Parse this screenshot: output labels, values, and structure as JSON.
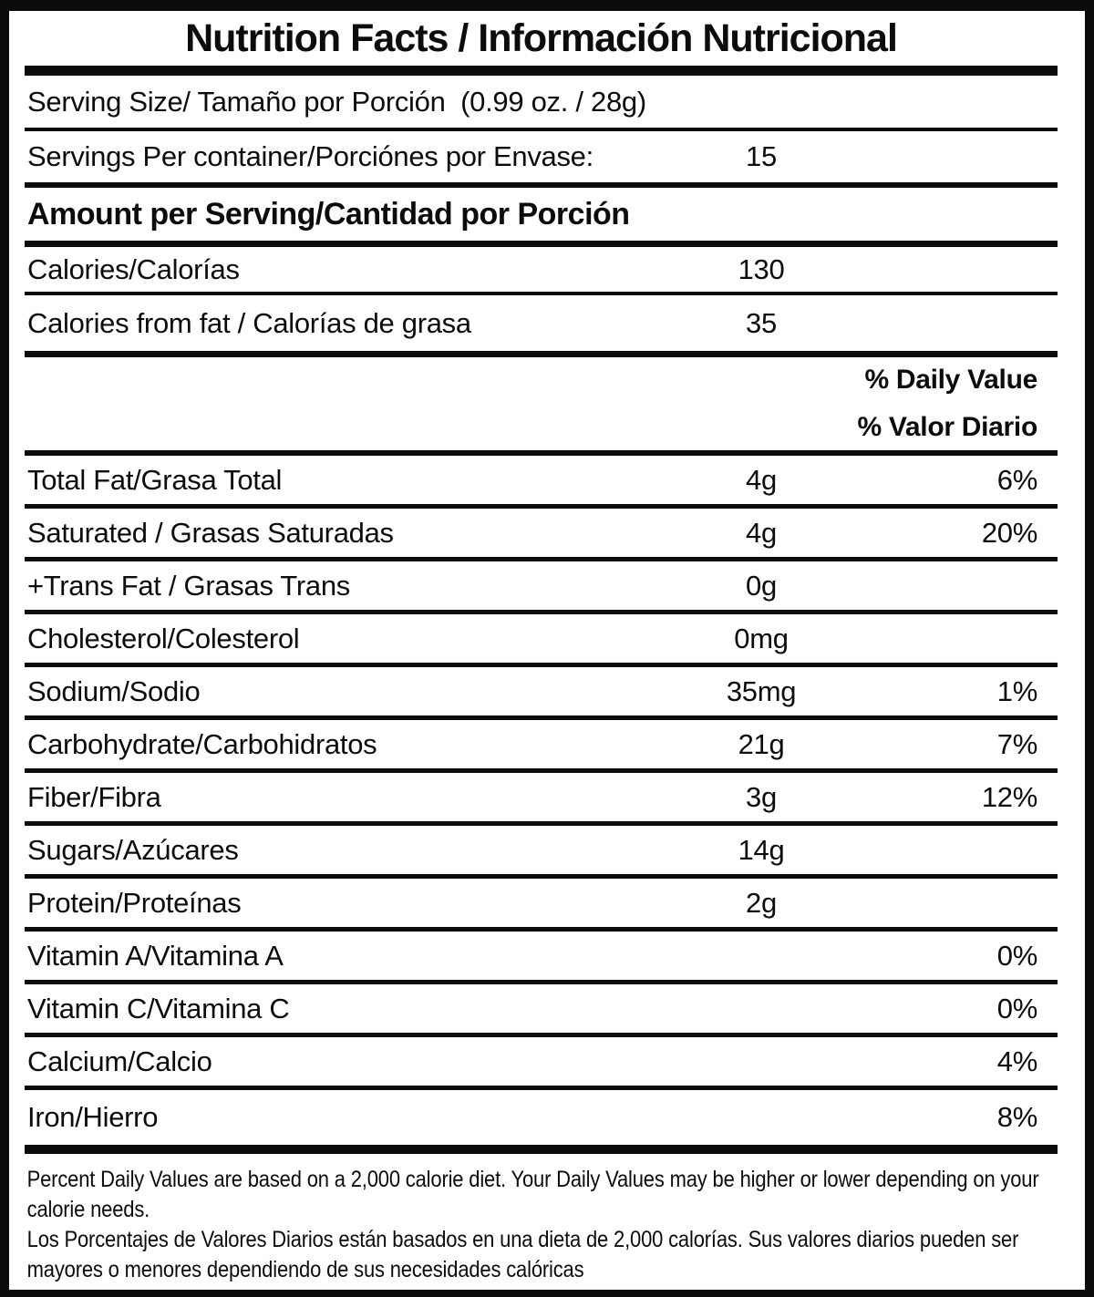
{
  "title": "Nutrition Facts / Información Nutricional",
  "serving": {
    "size_label": "Serving Size/ Tamaño por Porción  (0.99 oz. / 28g)",
    "per_container_label": "Servings Per container/Porciónes por Envase:",
    "per_container_value": "15"
  },
  "amount_header": "Amount per Serving/Cantidad por Porción",
  "calories": {
    "label": "Calories/Calorías",
    "value": "130"
  },
  "calories_from_fat": {
    "label": "Calories from fat / Calorías de grasa",
    "value": "35"
  },
  "daily_value_header": {
    "line1": "% Daily Value",
    "line2": "% Valor Diario"
  },
  "nutrients": [
    {
      "label": "Total Fat/Grasa Total",
      "amount": "4g",
      "dv": "6%"
    },
    {
      "label": "Saturated / Grasas Saturadas",
      "amount": "4g",
      "dv": "20%"
    },
    {
      "label": "+Trans Fat / Grasas Trans",
      "amount": "0g",
      "dv": ""
    },
    {
      "label": "Cholesterol/Colesterol",
      "amount": "0mg",
      "dv": ""
    },
    {
      "label": "Sodium/Sodio",
      "amount": "35mg",
      "dv": "1%"
    },
    {
      "label": "Carbohydrate/Carbohidratos",
      "amount": "21g",
      "dv": "7%"
    },
    {
      "label": "Fiber/Fibra",
      "amount": "3g",
      "dv": "12%"
    },
    {
      "label": "Sugars/Azúcares",
      "amount": "14g",
      "dv": ""
    },
    {
      "label": "Protein/Proteínas",
      "amount": "2g",
      "dv": ""
    },
    {
      "label": "Vitamin A/Vitamina A",
      "amount": "",
      "dv": "0%"
    },
    {
      "label": "Vitamin C/Vitamina C",
      "amount": "",
      "dv": "0%"
    },
    {
      "label": "Calcium/Calcio",
      "amount": "",
      "dv": "4%"
    },
    {
      "label": "Iron/Hierro",
      "amount": "",
      "dv": "8%"
    }
  ],
  "footnotes": {
    "english": "Percent Daily Values are based on a 2,000 calorie diet. Your Daily Values may be higher or lower depending on your calorie needs.",
    "spanish": "Los Porcentajes de Valores Diarios están basados en una dieta de 2,000 calorías. Sus valores diarios pueden ser mayores o menores dependiendo de sus necesidades calóricas"
  },
  "colors": {
    "ink": "#0c0c0e",
    "background": "#ffffff"
  }
}
